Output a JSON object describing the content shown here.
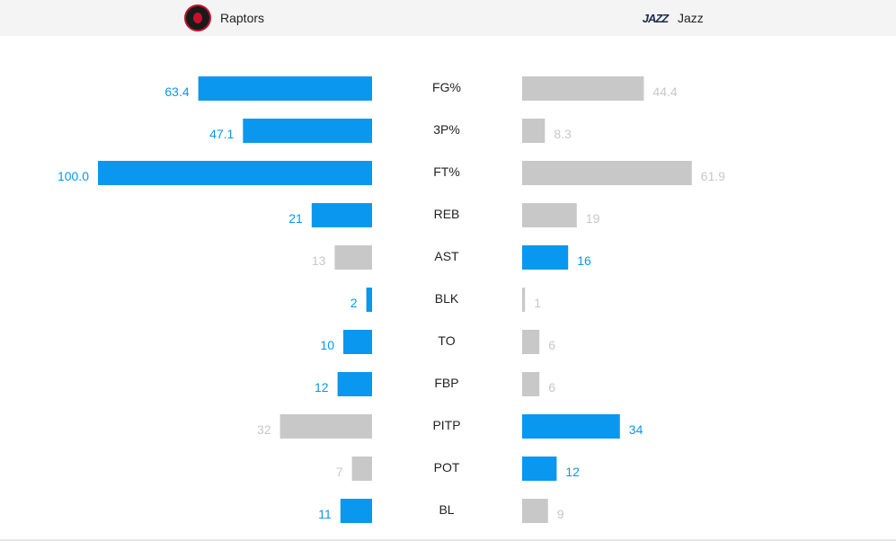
{
  "header": {
    "home_team": "Raptors",
    "away_team": "Jazz",
    "home_logo_icon": "raptors-logo-icon",
    "away_logo_icon": "jazz-logo-icon"
  },
  "colors": {
    "leader": "#0a97ef",
    "trailer": "#c8c8c8",
    "leader_text": "#0a97ef",
    "trailer_text": "#c8c8c8"
  },
  "chart_data": {
    "type": "bar",
    "orientation": "mirrored-horizontal",
    "categories": [
      "FG%",
      "3P%",
      "FT%",
      "REB",
      "AST",
      "BLK",
      "TO",
      "FBP",
      "PITP",
      "POT",
      "BL"
    ],
    "series": [
      {
        "name": "Raptors",
        "values": [
          63.4,
          47.1,
          100.0,
          21,
          13,
          2,
          10,
          12,
          32,
          7,
          11
        ],
        "labels": [
          "63.4",
          "47.1",
          "100.0",
          "21",
          "13",
          "2",
          "10",
          "12",
          "32",
          "7",
          "11"
        ],
        "highlight": [
          true,
          true,
          true,
          true,
          false,
          true,
          true,
          true,
          false,
          false,
          true
        ]
      },
      {
        "name": "Jazz",
        "values": [
          44.4,
          8.3,
          61.9,
          19,
          16,
          1,
          6,
          6,
          34,
          12,
          9
        ],
        "labels": [
          "44.4",
          "8.3",
          "61.9",
          "19",
          "16",
          "1",
          "6",
          "6",
          "34",
          "12",
          "9"
        ],
        "highlight": [
          false,
          false,
          false,
          false,
          true,
          false,
          false,
          false,
          true,
          true,
          false
        ]
      }
    ],
    "grid": false,
    "legend": "top"
  }
}
